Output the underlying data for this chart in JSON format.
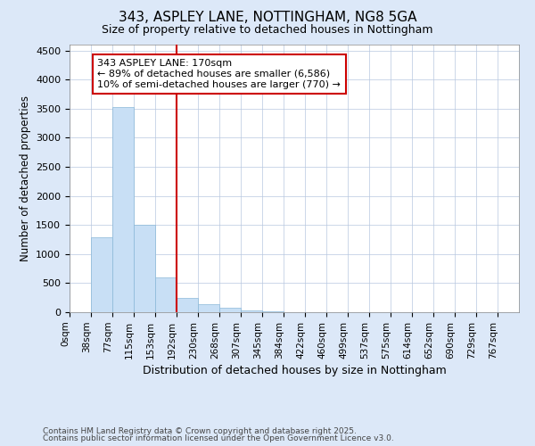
{
  "title_line1": "343, ASPLEY LANE, NOTTINGHAM, NG8 5GA",
  "title_line2": "Size of property relative to detached houses in Nottingham",
  "xlabel": "Distribution of detached houses by size in Nottingham",
  "ylabel": "Number of detached properties",
  "bar_labels": [
    "0sqm",
    "38sqm",
    "77sqm",
    "115sqm",
    "153sqm",
    "192sqm",
    "230sqm",
    "268sqm",
    "307sqm",
    "345sqm",
    "384sqm",
    "422sqm",
    "460sqm",
    "499sqm",
    "537sqm",
    "575sqm",
    "614sqm",
    "652sqm",
    "690sqm",
    "729sqm",
    "767sqm"
  ],
  "bar_values": [
    5,
    1295,
    3530,
    1500,
    600,
    240,
    140,
    70,
    30,
    8,
    3,
    1,
    0,
    0,
    0,
    0,
    0,
    0,
    0,
    0,
    0
  ],
  "bar_color": "#c8dff5",
  "bar_edge_color": "#8ab8d8",
  "vline_index": 5,
  "vline_color": "#cc0000",
  "ylim": [
    0,
    4600
  ],
  "yticks": [
    0,
    500,
    1000,
    1500,
    2000,
    2500,
    3000,
    3500,
    4000,
    4500
  ],
  "annotation_text": "343 ASPLEY LANE: 170sqm\n← 89% of detached houses are smaller (6,586)\n10% of semi-detached houses are larger (770) →",
  "annotation_box_color": "#cc0000",
  "footer_line1": "Contains HM Land Registry data © Crown copyright and database right 2025.",
  "footer_line2": "Contains public sector information licensed under the Open Government Licence v3.0.",
  "bg_color": "#dce8f8",
  "plot_bg_color": "#ffffff",
  "grid_color": "#b8c8e0"
}
